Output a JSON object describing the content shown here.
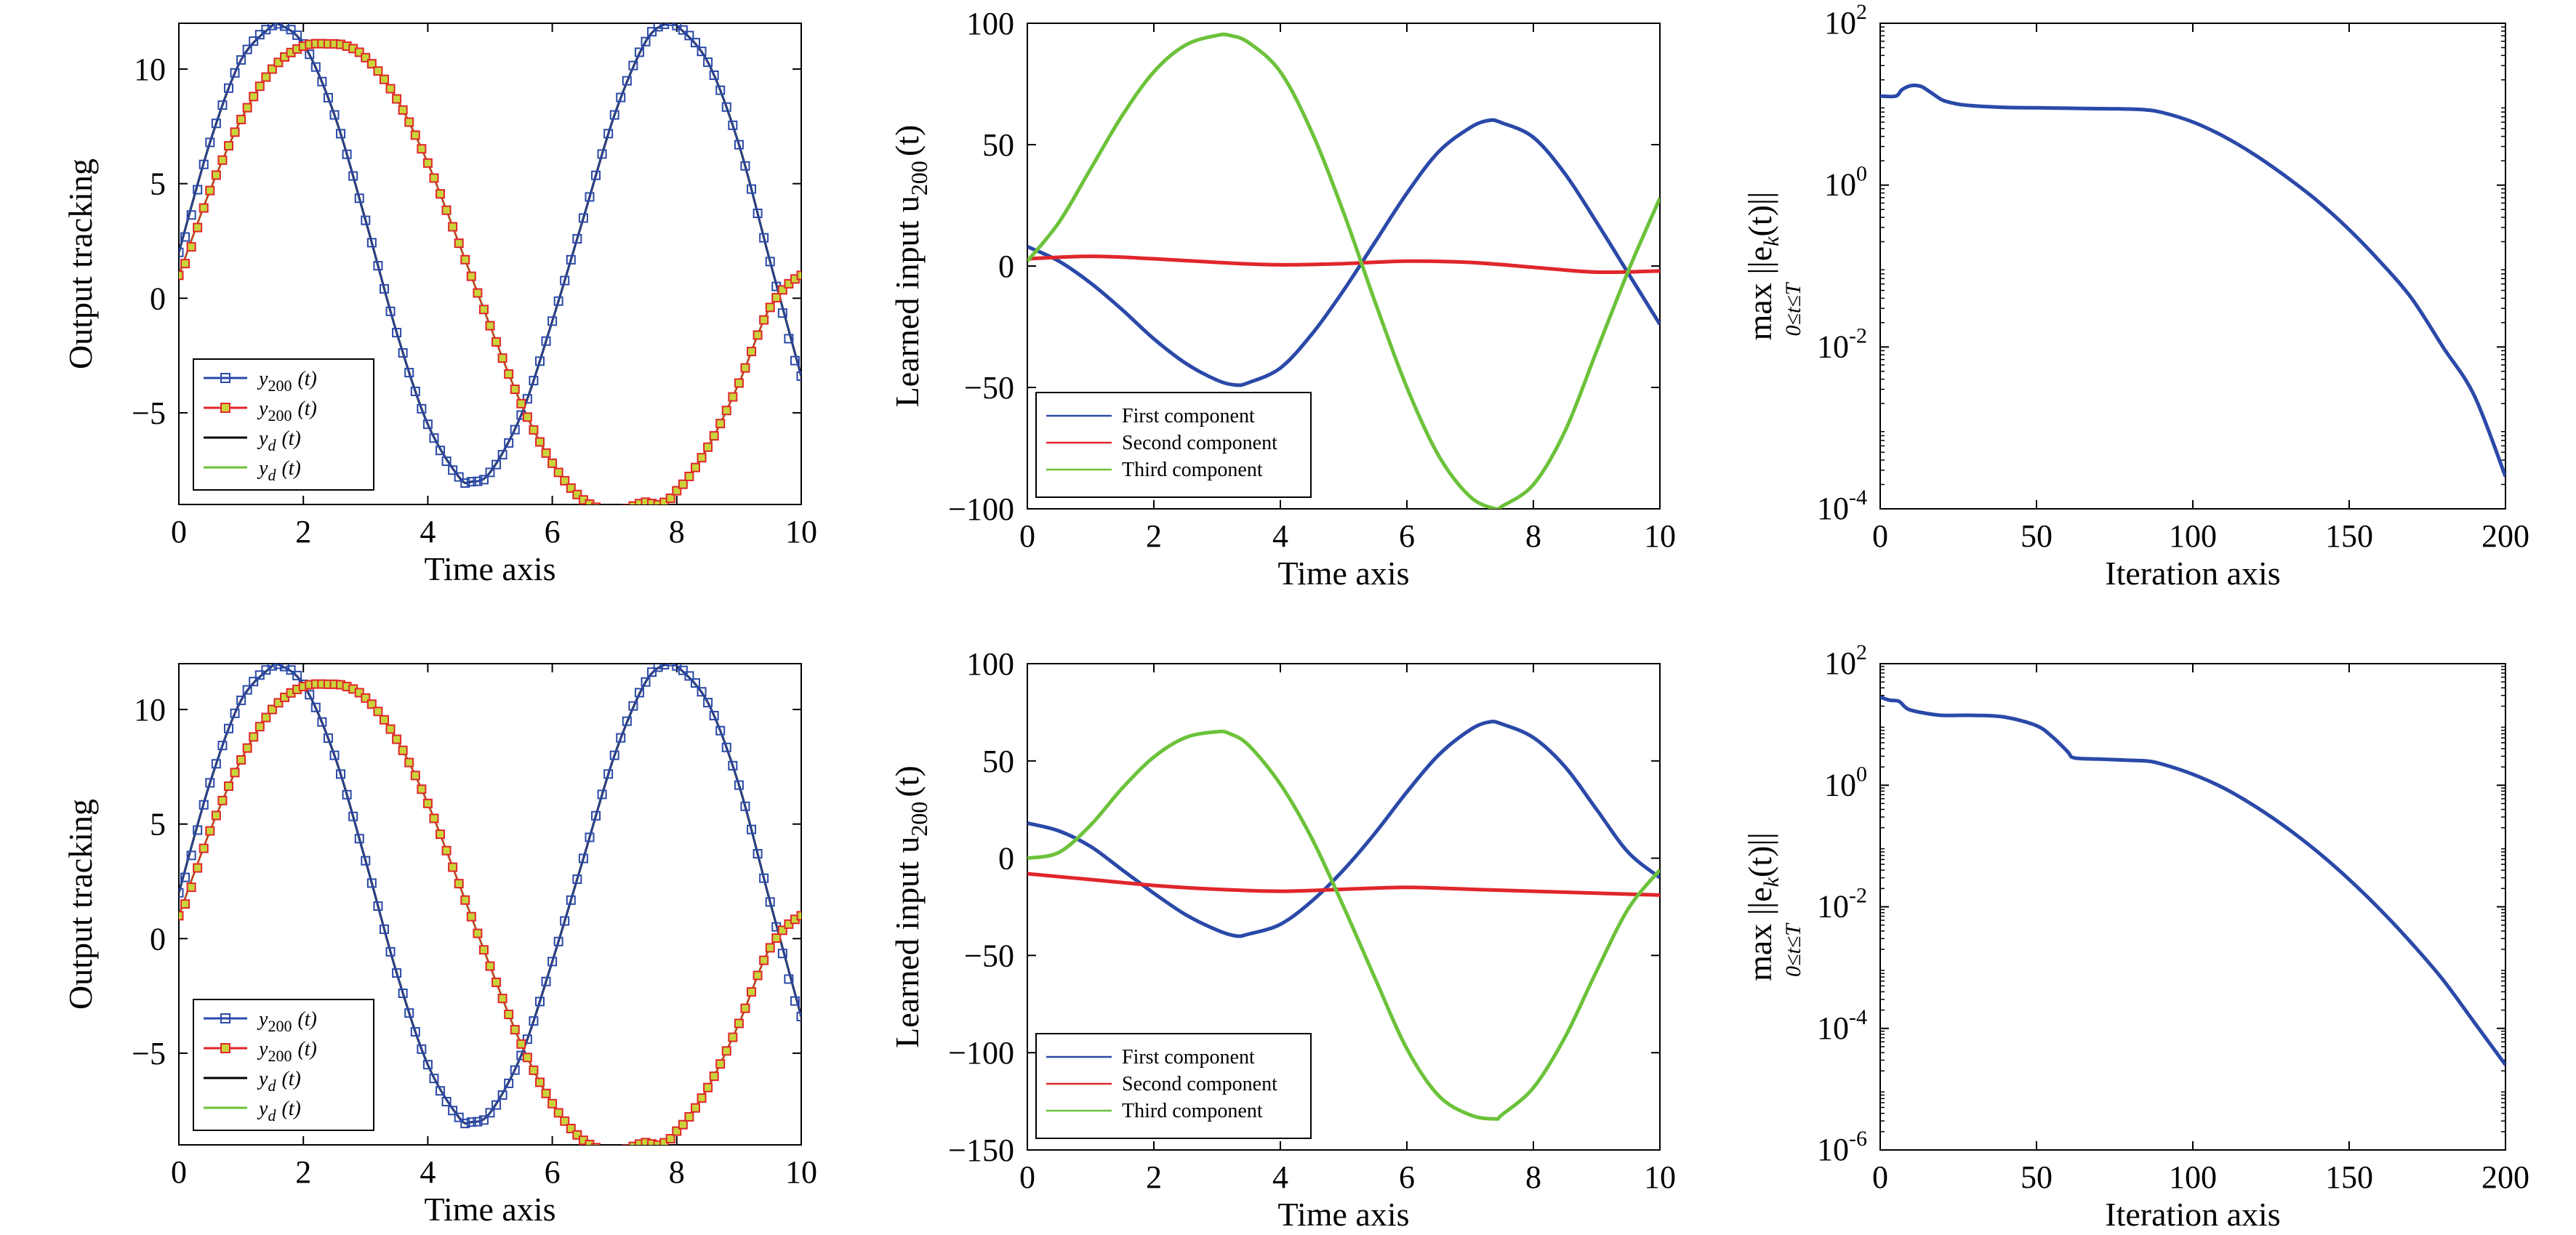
{
  "colors": {
    "blue": "#2a49a8",
    "red": "#e0262c",
    "green": "#6cc23a",
    "black": "#000000",
    "marker_fill_red": "#c9d43a"
  },
  "chart_data": [
    {
      "id": "r1c1",
      "type": "line",
      "xlabel": "Time axis",
      "ylabel": "Output tracking",
      "xlim": [
        0,
        10
      ],
      "ylim": [
        -9,
        12
      ],
      "xticks": [
        0,
        2,
        4,
        6,
        8,
        10
      ],
      "yticks": [
        -5,
        0,
        5,
        10
      ],
      "legend_position": "bottom-left",
      "series": [
        {
          "name_main": "y",
          "name_sub": "200",
          "name_arg": "(t)",
          "color": "blue",
          "marker": "square",
          "x": [
            0,
            0.5,
            1,
            1.5,
            1.57,
            2,
            2.5,
            3,
            3.5,
            4,
            4.5,
            4.71,
            5,
            5.5,
            6,
            6.5,
            7,
            7.5,
            7.85,
            8,
            8.5,
            9,
            9.5,
            10
          ],
          "y": [
            2,
            6.8,
            10.4,
            11.9,
            12,
            11.1,
            8,
            3.4,
            -1.5,
            -5.5,
            -7.8,
            -8,
            -7.6,
            -5.1,
            -1,
            3.5,
            8,
            11.2,
            12,
            11.9,
            10.3,
            6.7,
            1.6,
            -3.4
          ]
        },
        {
          "name_main": "y",
          "name_sub": "200",
          "name_arg": "(t)",
          "color": "red",
          "marker": "square",
          "x": [
            0,
            0.5,
            1,
            1.5,
            2,
            2.5,
            2.57,
            3,
            3.5,
            4,
            4.5,
            5,
            5.5,
            6,
            6.5,
            7,
            7.5,
            7.71,
            8,
            8.5,
            9,
            9.5,
            10
          ],
          "y": [
            1,
            4.7,
            7.8,
            10,
            11,
            11.1,
            11.1,
            10.5,
            8.7,
            5.9,
            2.4,
            -1.2,
            -4.6,
            -7.2,
            -8.8,
            -9.3,
            -8.9,
            -9,
            -8.4,
            -6.5,
            -3.7,
            -0.4,
            1
          ]
        },
        {
          "name_main": "y",
          "name_sub": "d",
          "name_arg": "(t)",
          "color": "black"
        },
        {
          "name_main": "y",
          "name_sub": "d",
          "name_arg": "(t)",
          "color": "green"
        }
      ]
    },
    {
      "id": "r1c2",
      "type": "line",
      "xlabel": "Time axis",
      "ylabel_main": "Learned input u",
      "ylabel_sub": "200",
      "ylabel_arg": "(t)",
      "xlim": [
        0,
        10
      ],
      "ylim": [
        -100,
        100
      ],
      "xticks": [
        0,
        2,
        4,
        6,
        8,
        10
      ],
      "yticks": [
        -100,
        -50,
        0,
        50,
        100
      ],
      "legend_position": "bottom-left",
      "series": [
        {
          "name": "First component",
          "color": "blue",
          "x": [
            0,
            0.5,
            1,
            1.5,
            2,
            2.5,
            3,
            3.3,
            3.5,
            4,
            4.5,
            5,
            5.5,
            6,
            6.5,
            7,
            7.3,
            7.5,
            8,
            8.5,
            9,
            9.5,
            10
          ],
          "y": [
            8,
            2,
            -7,
            -18,
            -30,
            -40,
            -47,
            -49,
            -48,
            -42,
            -28,
            -10,
            10,
            30,
            47,
            57,
            60,
            59,
            53,
            38,
            18,
            -3,
            -24
          ]
        },
        {
          "name": "Second component",
          "color": "red",
          "x": [
            0,
            1,
            2,
            3,
            4,
            5,
            6,
            7,
            8,
            9,
            10
          ],
          "y": [
            3,
            4,
            3,
            1.5,
            0.5,
            1,
            2,
            1.5,
            -0.5,
            -2.5,
            -2
          ]
        },
        {
          "name": "Third component",
          "color": "green",
          "x": [
            0,
            0.5,
            1,
            1.5,
            2,
            2.5,
            3,
            3.2,
            3.5,
            4,
            4.5,
            5,
            5.5,
            6,
            6.5,
            7,
            7.4,
            7.5,
            8,
            8.5,
            9,
            9.5,
            10
          ],
          "y": [
            2,
            18,
            40,
            62,
            80,
            91,
            95,
            95,
            92,
            80,
            55,
            22,
            -15,
            -50,
            -78,
            -95,
            -100,
            -99,
            -90,
            -68,
            -35,
            -2,
            28
          ]
        }
      ]
    },
    {
      "id": "r1c3",
      "type": "line",
      "xlabel": "Iteration axis",
      "ylabel_main": "max ||e",
      "ylabel_sub_e": "k",
      "ylabel_tail": "(t)||",
      "ylabel_under": "0≤t≤T",
      "yscale": "log",
      "xlim": [
        0,
        200
      ],
      "ylim_exp": [
        -4,
        2
      ],
      "xticks": [
        0,
        50,
        100,
        150,
        200
      ],
      "ytick_exps": [
        -4,
        -2,
        0,
        2
      ],
      "ytick_base": "10",
      "ytick_labels": [
        "-4",
        "-2",
        "0",
        "2"
      ],
      "series": [
        {
          "color": "blue",
          "x": [
            0,
            5,
            7,
            10,
            13,
            16,
            20,
            25,
            30,
            40,
            50,
            60,
            70,
            80,
            85,
            90,
            100,
            110,
            120,
            130,
            140,
            150,
            160,
            170,
            180,
            190,
            200
          ],
          "log10y": [
            1.1,
            1.1,
            1.18,
            1.23,
            1.22,
            1.15,
            1.05,
            1.0,
            0.98,
            0.96,
            0.955,
            0.95,
            0.945,
            0.94,
            0.93,
            0.9,
            0.78,
            0.6,
            0.37,
            0.1,
            -0.2,
            -0.55,
            -0.95,
            -1.4,
            -2.0,
            -2.6,
            -3.6
          ]
        }
      ]
    },
    {
      "id": "r2c1",
      "type": "line",
      "xlabel": "Time axis",
      "ylabel": "Output tracking",
      "xlim": [
        0,
        10
      ],
      "ylim": [
        -9,
        12
      ],
      "xticks": [
        0,
        2,
        4,
        6,
        8,
        10
      ],
      "yticks": [
        -5,
        0,
        5,
        10
      ],
      "legend_position": "bottom-left",
      "series": [
        {
          "name_main": "y",
          "name_sub": "200",
          "name_arg": "(t)",
          "color": "blue",
          "marker": "square",
          "x": [
            0,
            0.5,
            1,
            1.5,
            1.57,
            2,
            2.5,
            3,
            3.5,
            4,
            4.5,
            4.71,
            5,
            5.5,
            6,
            6.5,
            7,
            7.5,
            7.85,
            8,
            8.5,
            9,
            9.5,
            10
          ],
          "y": [
            2,
            6.8,
            10.4,
            11.9,
            12,
            11.1,
            8,
            3.4,
            -1.5,
            -5.5,
            -7.8,
            -8,
            -7.6,
            -5.1,
            -1,
            3.5,
            8,
            11.2,
            12,
            11.9,
            10.3,
            6.7,
            1.6,
            -3.4
          ]
        },
        {
          "name_main": "y",
          "name_sub": "200",
          "name_arg": "(t)",
          "color": "red",
          "marker": "square",
          "x": [
            0,
            0.5,
            1,
            1.5,
            2,
            2.5,
            2.57,
            3,
            3.5,
            4,
            4.5,
            5,
            5.5,
            6,
            6.5,
            7,
            7.5,
            7.71,
            8,
            8.5,
            9,
            9.5,
            10
          ],
          "y": [
            1,
            4.7,
            7.8,
            10,
            11,
            11.1,
            11.1,
            10.5,
            8.7,
            5.9,
            2.4,
            -1.2,
            -4.6,
            -7.2,
            -8.8,
            -9.3,
            -8.9,
            -9,
            -8.4,
            -6.5,
            -3.7,
            -0.4,
            1
          ]
        },
        {
          "name_main": "y",
          "name_sub": "d",
          "name_arg": "(t)",
          "color": "black"
        },
        {
          "name_main": "y",
          "name_sub": "d",
          "name_arg": "(t)",
          "color": "green"
        }
      ]
    },
    {
      "id": "r2c2",
      "type": "line",
      "xlabel": "Time axis",
      "ylabel_main": "Learned input u",
      "ylabel_sub": "200",
      "ylabel_arg": "(t)",
      "xlim": [
        0,
        10
      ],
      "ylim": [
        -150,
        100
      ],
      "xticks": [
        0,
        2,
        4,
        6,
        8,
        10
      ],
      "yticks": [
        -150,
        -100,
        -50,
        0,
        50,
        100
      ],
      "legend_position": "bottom-left",
      "series": [
        {
          "name": "First component",
          "color": "blue",
          "x": [
            0,
            0.5,
            1,
            1.5,
            2,
            2.5,
            3,
            3.3,
            3.5,
            4,
            4.5,
            5,
            5.5,
            6,
            6.5,
            7,
            7.3,
            7.5,
            8,
            8.5,
            9,
            9.5,
            10
          ],
          "y": [
            18,
            14,
            6,
            -6,
            -18,
            -29,
            -37,
            -40,
            -39,
            -34,
            -22,
            -6,
            13,
            34,
            53,
            66,
            70,
            69,
            62,
            47,
            25,
            3,
            -10
          ]
        },
        {
          "name": "Second component",
          "color": "red",
          "x": [
            0,
            1,
            2,
            3,
            4,
            5,
            6,
            7,
            8,
            9,
            10
          ],
          "y": [
            -8,
            -11,
            -14,
            -16,
            -17,
            -16,
            -15,
            -16,
            -17,
            -18,
            -19
          ]
        },
        {
          "name": "Third component",
          "color": "green",
          "x": [
            0,
            0.5,
            1,
            1.5,
            2,
            2.5,
            3,
            3.2,
            3.5,
            4,
            4.5,
            5,
            5.5,
            6,
            6.5,
            7,
            7.4,
            7.5,
            8,
            8.5,
            9,
            9.5,
            10
          ],
          "y": [
            0,
            3,
            17,
            36,
            52,
            62,
            65,
            64,
            58,
            38,
            10,
            -25,
            -62,
            -98,
            -122,
            -132,
            -134,
            -132,
            -118,
            -92,
            -58,
            -26,
            -6
          ]
        }
      ]
    },
    {
      "id": "r2c3",
      "type": "line",
      "xlabel": "Iteration axis",
      "ylabel_main": "max ||e",
      "ylabel_sub_e": "k",
      "ylabel_tail": "(t)||",
      "ylabel_under": "0≤t≤T",
      "yscale": "log",
      "xlim": [
        0,
        200
      ],
      "ylim_exp": [
        -6,
        2
      ],
      "xticks": [
        0,
        50,
        100,
        150,
        200
      ],
      "ytick_exps": [
        -6,
        -4,
        -2,
        0,
        2
      ],
      "ytick_base": "10",
      "ytick_labels": [
        "-6",
        "-4",
        "-2",
        "0",
        "2"
      ],
      "series": [
        {
          "color": "blue",
          "x": [
            0,
            3,
            6,
            9,
            15,
            20,
            30,
            40,
            50,
            55,
            60,
            62,
            70,
            80,
            85,
            90,
            100,
            110,
            120,
            130,
            140,
            150,
            160,
            170,
            180,
            190,
            200
          ],
          "log10y": [
            1.45,
            1.4,
            1.38,
            1.25,
            1.18,
            1.15,
            1.15,
            1.12,
            0.98,
            0.8,
            0.55,
            0.45,
            0.43,
            0.41,
            0.4,
            0.35,
            0.18,
            -0.05,
            -0.35,
            -0.7,
            -1.1,
            -1.55,
            -2.05,
            -2.6,
            -3.2,
            -3.9,
            -4.6
          ]
        }
      ]
    }
  ]
}
